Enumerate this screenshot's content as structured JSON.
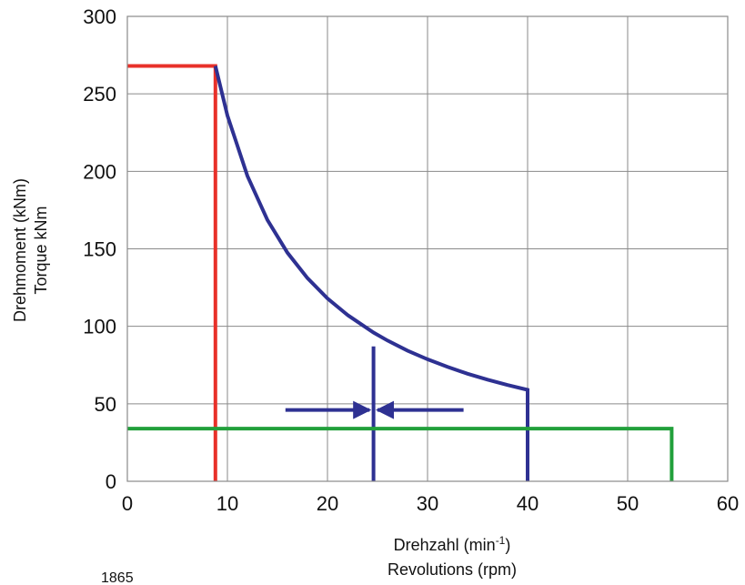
{
  "chart_data": {
    "type": "line",
    "xlim": [
      0,
      60
    ],
    "ylim": [
      0,
      300
    ],
    "x_ticks": [
      "0",
      "10",
      "20",
      "30",
      "40",
      "50",
      "60"
    ],
    "y_ticks": [
      "0",
      "50",
      "100",
      "150",
      "200",
      "250",
      "300"
    ],
    "grid": true,
    "xlabel": {
      "line1": "Drehzahl (min",
      "superscript": "-1",
      "line1_end": ")",
      "line2": "Revolutions (rpm)"
    },
    "ylabel": {
      "line1": "Drehmoment (kNm)",
      "line2": "Torque kNm"
    },
    "series": [
      {
        "color": "#e8312a",
        "x": [
          0,
          8.8,
          8.8
        ],
        "y": [
          268,
          268,
          0
        ]
      },
      {
        "color": "#2e3192",
        "x": [
          8.8,
          10,
          12,
          14,
          16,
          18,
          20,
          22,
          24.6,
          26,
          28,
          30,
          32,
          34,
          36,
          38,
          40,
          40
        ],
        "y": [
          268,
          236,
          197,
          168.6,
          147.5,
          131.1,
          118,
          107.3,
          96,
          90.8,
          84.3,
          78.7,
          73.8,
          69.4,
          65.6,
          62.1,
          59,
          0
        ]
      },
      {
        "color": "#2e3192",
        "x": [
          24.6,
          24.6
        ],
        "y": [
          87,
          0
        ]
      },
      {
        "color": "#22a03b",
        "x": [
          0,
          54.4,
          54.4
        ],
        "y": [
          34,
          34,
          0
        ]
      }
    ],
    "arrows": [
      {
        "color": "#2e3192",
        "from": [
          15.8,
          46
        ],
        "to": [
          24.2,
          46
        ]
      },
      {
        "color": "#2e3192",
        "from": [
          33.6,
          46
        ],
        "to": [
          25.0,
          46
        ]
      }
    ]
  },
  "figure_number": "1865"
}
